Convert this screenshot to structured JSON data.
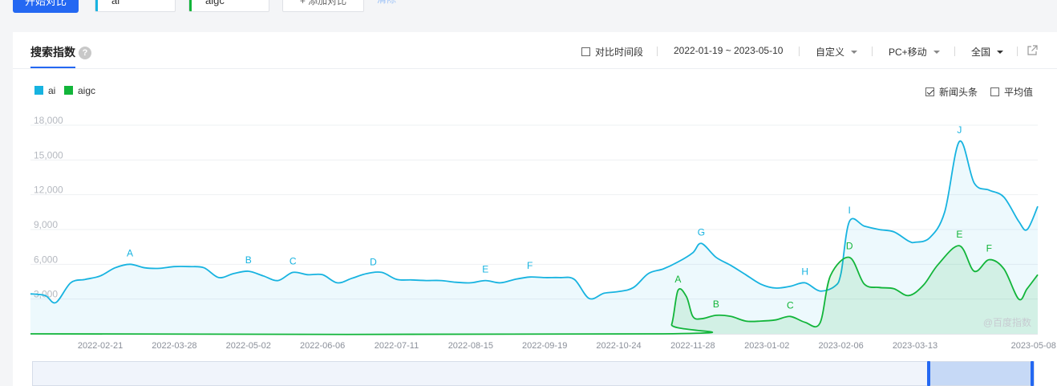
{
  "toolbar": {
    "start_button": "开始对比",
    "keywords": [
      {
        "label": "ai",
        "color": "#17b3e0"
      },
      {
        "label": "aigc",
        "color": "#12b53a"
      }
    ],
    "add_button": "+ 添加对比",
    "clear_link": "清除"
  },
  "panel": {
    "tab_title": "搜索指数",
    "help_icon": "?",
    "compare_period_label": "对比时间段",
    "date_range": "2022-01-19 ~ 2023-05-10",
    "range_mode": "自定义",
    "device": "PC+移动",
    "region": "全国",
    "export_icon": "external-link-icon",
    "news_label": "新闻头条",
    "news_checked": true,
    "average_label": "平均值",
    "average_checked": false,
    "watermark": "@百度指数"
  },
  "colors": {
    "ai": "#17b3e0",
    "aigc": "#12b53a",
    "accent": "#2468f2"
  },
  "chart_data": {
    "type": "area",
    "y_ticks": [
      "18,000",
      "15,000",
      "12,000",
      "9,000",
      "6,000",
      "3,000"
    ],
    "ylim": [
      0,
      18000
    ],
    "x_tick_labels": [
      "2022-02-21",
      "2022-03-28",
      "2022-05-02",
      "2022-06-06",
      "2022-07-11",
      "2022-08-15",
      "2022-09-19",
      "2022-10-24",
      "2022-11-28",
      "2023-01-02",
      "2023-02-06",
      "2023-03-13",
      "2023-05-08"
    ],
    "x_tick_dates": [
      "2022-02-21",
      "2022-03-28",
      "2022-05-02",
      "2022-06-06",
      "2022-07-11",
      "2022-08-15",
      "2022-09-19",
      "2022-10-24",
      "2022-11-28",
      "2023-01-02",
      "2023-02-06",
      "2023-03-13",
      "2023-05-08"
    ],
    "xlim": [
      "2022-01-19",
      "2023-05-10"
    ],
    "series": [
      {
        "name": "ai",
        "color": "#17b3e0",
        "points": [
          [
            "2022-01-19",
            3450
          ],
          [
            "2022-01-26",
            3300
          ],
          [
            "2022-01-31",
            2700
          ],
          [
            "2022-02-07",
            4400
          ],
          [
            "2022-02-14",
            4700
          ],
          [
            "2022-02-21",
            5000
          ],
          [
            "2022-02-28",
            5700
          ],
          [
            "2022-03-07",
            6000
          ],
          [
            "2022-03-14",
            5700
          ],
          [
            "2022-03-21",
            5650
          ],
          [
            "2022-03-28",
            5800
          ],
          [
            "2022-04-04",
            5800
          ],
          [
            "2022-04-11",
            5700
          ],
          [
            "2022-04-18",
            4850
          ],
          [
            "2022-04-25",
            5200
          ],
          [
            "2022-05-02",
            5400
          ],
          [
            "2022-05-09",
            5000
          ],
          [
            "2022-05-16",
            4600
          ],
          [
            "2022-05-23",
            5300
          ],
          [
            "2022-05-30",
            5100
          ],
          [
            "2022-06-06",
            5100
          ],
          [
            "2022-06-13",
            4400
          ],
          [
            "2022-06-20",
            4800
          ],
          [
            "2022-06-27",
            5200
          ],
          [
            "2022-07-04",
            5300
          ],
          [
            "2022-07-11",
            4700
          ],
          [
            "2022-07-18",
            4650
          ],
          [
            "2022-07-25",
            4600
          ],
          [
            "2022-08-01",
            4600
          ],
          [
            "2022-08-08",
            4450
          ],
          [
            "2022-08-15",
            4400
          ],
          [
            "2022-08-22",
            4600
          ],
          [
            "2022-08-29",
            4400
          ],
          [
            "2022-09-05",
            4700
          ],
          [
            "2022-09-12",
            4900
          ],
          [
            "2022-09-19",
            4850
          ],
          [
            "2022-09-26",
            4850
          ],
          [
            "2022-10-03",
            4700
          ],
          [
            "2022-10-10",
            3050
          ],
          [
            "2022-10-17",
            3500
          ],
          [
            "2022-10-24",
            3650
          ],
          [
            "2022-10-31",
            4000
          ],
          [
            "2022-11-07",
            5200
          ],
          [
            "2022-11-14",
            5600
          ],
          [
            "2022-11-21",
            6200
          ],
          [
            "2022-11-28",
            7000
          ],
          [
            "2022-12-02",
            7800
          ],
          [
            "2022-12-09",
            6600
          ],
          [
            "2022-12-16",
            5900
          ],
          [
            "2022-12-23",
            5100
          ],
          [
            "2022-12-30",
            4300
          ],
          [
            "2023-01-06",
            3950
          ],
          [
            "2023-01-13",
            4100
          ],
          [
            "2023-01-20",
            4400
          ],
          [
            "2023-01-27",
            3700
          ],
          [
            "2023-02-03",
            4100
          ],
          [
            "2023-02-06",
            5200
          ],
          [
            "2023-02-10",
            9700
          ],
          [
            "2023-02-17",
            9300
          ],
          [
            "2023-02-24",
            9000
          ],
          [
            "2023-03-03",
            8800
          ],
          [
            "2023-03-10",
            8000
          ],
          [
            "2023-03-13",
            7900
          ],
          [
            "2023-03-20",
            8300
          ],
          [
            "2023-03-27",
            10500
          ],
          [
            "2023-04-03",
            16600
          ],
          [
            "2023-04-10",
            13000
          ],
          [
            "2023-04-17",
            12400
          ],
          [
            "2023-04-24",
            11800
          ],
          [
            "2023-05-01",
            9700
          ],
          [
            "2023-05-05",
            9000
          ],
          [
            "2023-05-10",
            11000
          ]
        ],
        "annotations": [
          {
            "label": "A",
            "date": "2022-03-07"
          },
          {
            "label": "B",
            "date": "2022-05-02"
          },
          {
            "label": "C",
            "date": "2022-05-23"
          },
          {
            "label": "D",
            "date": "2022-06-30"
          },
          {
            "label": "E",
            "date": "2022-08-22"
          },
          {
            "label": "F",
            "date": "2022-09-12"
          },
          {
            "label": "G",
            "date": "2022-12-02"
          },
          {
            "label": "H",
            "date": "2023-01-20"
          },
          {
            "label": "I",
            "date": "2023-02-10"
          },
          {
            "label": "J",
            "date": "2023-04-03"
          }
        ]
      },
      {
        "name": "aigc",
        "color": "#12b53a",
        "points": [
          [
            "2022-01-19",
            0
          ],
          [
            "2022-11-14",
            0
          ],
          [
            "2022-11-18",
            800
          ],
          [
            "2022-11-21",
            3750
          ],
          [
            "2022-11-25",
            3200
          ],
          [
            "2022-11-28",
            1500
          ],
          [
            "2022-12-02",
            1300
          ],
          [
            "2022-12-09",
            1600
          ],
          [
            "2022-12-16",
            1500
          ],
          [
            "2022-12-23",
            1100
          ],
          [
            "2022-12-30",
            1100
          ],
          [
            "2023-01-06",
            1200
          ],
          [
            "2023-01-13",
            1500
          ],
          [
            "2023-01-20",
            1000
          ],
          [
            "2023-01-27",
            900
          ],
          [
            "2023-02-01",
            5000
          ],
          [
            "2023-02-10",
            6600
          ],
          [
            "2023-02-17",
            4300
          ],
          [
            "2023-02-24",
            4000
          ],
          [
            "2023-03-03",
            3900
          ],
          [
            "2023-03-10",
            3300
          ],
          [
            "2023-03-17",
            4200
          ],
          [
            "2023-03-24",
            6000
          ],
          [
            "2023-04-03",
            7600
          ],
          [
            "2023-04-10",
            5400
          ],
          [
            "2023-04-17",
            6400
          ],
          [
            "2023-04-24",
            5600
          ],
          [
            "2023-05-01",
            3000
          ],
          [
            "2023-05-05",
            3900
          ],
          [
            "2023-05-10",
            5100
          ]
        ],
        "annotations": [
          {
            "label": "A",
            "date": "2022-11-21"
          },
          {
            "label": "B",
            "date": "2022-12-09"
          },
          {
            "label": "C",
            "date": "2023-01-13"
          },
          {
            "label": "D",
            "date": "2023-02-10"
          },
          {
            "label": "E",
            "date": "2023-04-03"
          },
          {
            "label": "F",
            "date": "2023-04-17"
          }
        ]
      }
    ],
    "grid": true,
    "legend_position": "top-left"
  }
}
